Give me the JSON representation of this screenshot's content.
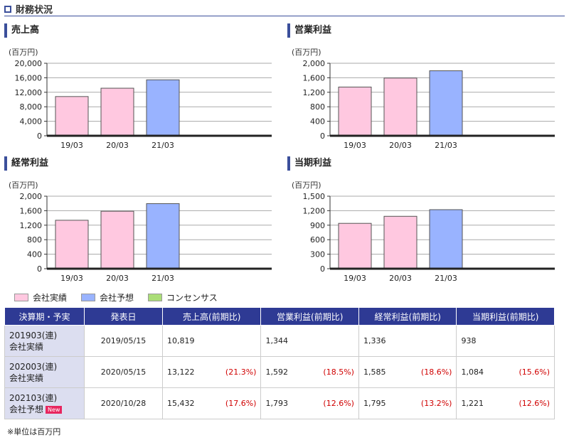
{
  "section_title": "財務状況",
  "legend": {
    "actual": {
      "label": "会社実績",
      "color": "#ffc8e0"
    },
    "forecast": {
      "label": "会社予想",
      "color": "#99b3ff"
    },
    "consensus": {
      "label": "コンセンサス",
      "color": "#aadd77"
    }
  },
  "chart_data": [
    {
      "type": "bar",
      "title": "売上高",
      "unit": "(百万円)",
      "categories": [
        "19/03",
        "20/03",
        "21/03"
      ],
      "values": [
        10819,
        13122,
        15432
      ],
      "kinds": [
        "actual",
        "actual",
        "forecast"
      ],
      "ylim": [
        0,
        20000
      ],
      "yticks": [
        "0",
        "4,000",
        "8,000",
        "12,000",
        "16,000",
        "20,000"
      ]
    },
    {
      "type": "bar",
      "title": "営業利益",
      "unit": "(百万円)",
      "categories": [
        "19/03",
        "20/03",
        "21/03"
      ],
      "values": [
        1344,
        1592,
        1793
      ],
      "kinds": [
        "actual",
        "actual",
        "forecast"
      ],
      "ylim": [
        0,
        2000
      ],
      "yticks": [
        "0",
        "400",
        "800",
        "1,200",
        "1,600",
        "2,000"
      ]
    },
    {
      "type": "bar",
      "title": "経常利益",
      "unit": "(百万円)",
      "categories": [
        "19/03",
        "20/03",
        "21/03"
      ],
      "values": [
        1336,
        1585,
        1795
      ],
      "kinds": [
        "actual",
        "actual",
        "forecast"
      ],
      "ylim": [
        0,
        2000
      ],
      "yticks": [
        "0",
        "400",
        "800",
        "1,200",
        "1,600",
        "2,000"
      ]
    },
    {
      "type": "bar",
      "title": "当期利益",
      "unit": "(百万円)",
      "categories": [
        "19/03",
        "20/03",
        "21/03"
      ],
      "values": [
        938,
        1084,
        1221
      ],
      "kinds": [
        "actual",
        "actual",
        "forecast"
      ],
      "ylim": [
        0,
        1500
      ],
      "yticks": [
        "0",
        "300",
        "600",
        "900",
        "1,200",
        "1,500"
      ]
    }
  ],
  "table": {
    "headers": [
      "決算期・予実",
      "発表日",
      "売上高(前期比)",
      "営業利益(前期比)",
      "経常利益(前期比)",
      "当期利益(前期比)"
    ],
    "rows": [
      {
        "period": "201903(連)",
        "type": "会社実績",
        "badge": "",
        "date": "2019/05/15",
        "cells": [
          [
            "10,819",
            ""
          ],
          [
            "1,344",
            ""
          ],
          [
            "1,336",
            ""
          ],
          [
            "938",
            ""
          ]
        ]
      },
      {
        "period": "202003(連)",
        "type": "会社実績",
        "badge": "",
        "date": "2020/05/15",
        "cells": [
          [
            "13,122",
            "(21.3%)"
          ],
          [
            "1,592",
            "(18.5%)"
          ],
          [
            "1,585",
            "(18.6%)"
          ],
          [
            "1,084",
            "(15.6%)"
          ]
        ]
      },
      {
        "period": "202103(連)",
        "type": "会社予想",
        "badge": "New",
        "date": "2020/10/28",
        "cells": [
          [
            "15,432",
            "(17.6%)"
          ],
          [
            "1,793",
            "(12.6%)"
          ],
          [
            "1,795",
            "(13.2%)"
          ],
          [
            "1,221",
            "(12.6%)"
          ]
        ]
      }
    ]
  },
  "note": "※単位は百万円"
}
